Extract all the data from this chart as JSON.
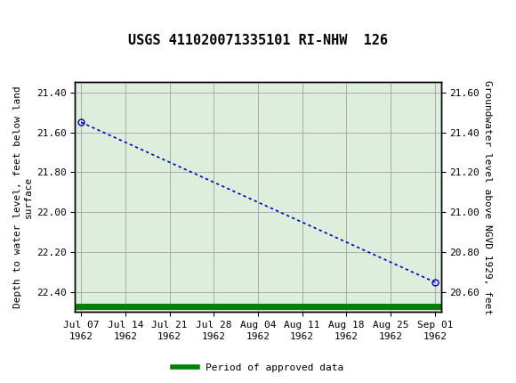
{
  "title": "USGS 411020071335101 RI-NHW  126",
  "ylabel_left": "Depth to water level, feet below land\nsurface",
  "ylabel_right": "Groundwater level above NGVD 1929, feet",
  "ylim_left": [
    22.5,
    21.35
  ],
  "ylim_right": [
    20.5,
    21.65
  ],
  "yticks_left": [
    21.4,
    21.6,
    21.8,
    22.0,
    22.2,
    22.4
  ],
  "yticks_right": [
    21.6,
    21.4,
    21.2,
    21.0,
    20.8,
    20.6
  ],
  "x_tick_labels": [
    "Jul 07\n1962",
    "Jul 14\n1962",
    "Jul 21\n1962",
    "Jul 28\n1962",
    "Aug 04\n1962",
    "Aug 11\n1962",
    "Aug 18\n1962",
    "Aug 25\n1962",
    "Sep 01\n1962"
  ],
  "x_tick_positions": [
    0,
    7,
    14,
    21,
    28,
    35,
    42,
    49,
    56
  ],
  "data_x": [
    0,
    56
  ],
  "data_y": [
    21.55,
    22.35
  ],
  "line_color": "#0000bb",
  "marker_color": "#0000bb",
  "marker_size": 5,
  "green_color": "#008000",
  "legend_label": "Period of approved data",
  "header_bg_color": "#006633",
  "background_color": "#ddeedd",
  "grid_color": "#aaaaaa",
  "title_fontsize": 11,
  "axis_label_fontsize": 8,
  "tick_fontsize": 8
}
